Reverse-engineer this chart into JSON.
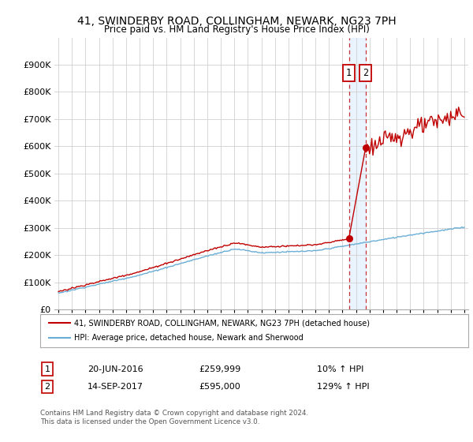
{
  "title": "41, SWINDERBY ROAD, COLLINGHAM, NEWARK, NG23 7PH",
  "subtitle": "Price paid vs. HM Land Registry's House Price Index (HPI)",
  "ylim": [
    0,
    1000000
  ],
  "yticks": [
    0,
    100000,
    200000,
    300000,
    400000,
    500000,
    600000,
    700000,
    800000,
    900000
  ],
  "ytick_labels": [
    "£0",
    "£100K",
    "£200K",
    "£300K",
    "£400K",
    "£500K",
    "£600K",
    "£700K",
    "£800K",
    "£900K"
  ],
  "hpi_color": "#6aaed6",
  "price_color": "#c00000",
  "sale1_date": 2016.47,
  "sale1_price": 259999,
  "sale1_label": "1",
  "sale1_display": "20-JUN-2016",
  "sale1_amount": "£259,999",
  "sale1_pct": "10% ↑ HPI",
  "sale2_date": 2017.71,
  "sale2_price": 595000,
  "sale2_label": "2",
  "sale2_display": "14-SEP-2017",
  "sale2_amount": "£595,000",
  "sale2_pct": "129% ↑ HPI",
  "legend_line1": "41, SWINDERBY ROAD, COLLINGHAM, NEWARK, NG23 7PH (detached house)",
  "legend_line2": "HPI: Average price, detached house, Newark and Sherwood",
  "footer": "Contains HM Land Registry data © Crown copyright and database right 2024.\nThis data is licensed under the Open Government Licence v3.0.",
  "background_color": "#ffffff",
  "grid_color": "#d0d0d0",
  "shade_color": "#ddeeff"
}
